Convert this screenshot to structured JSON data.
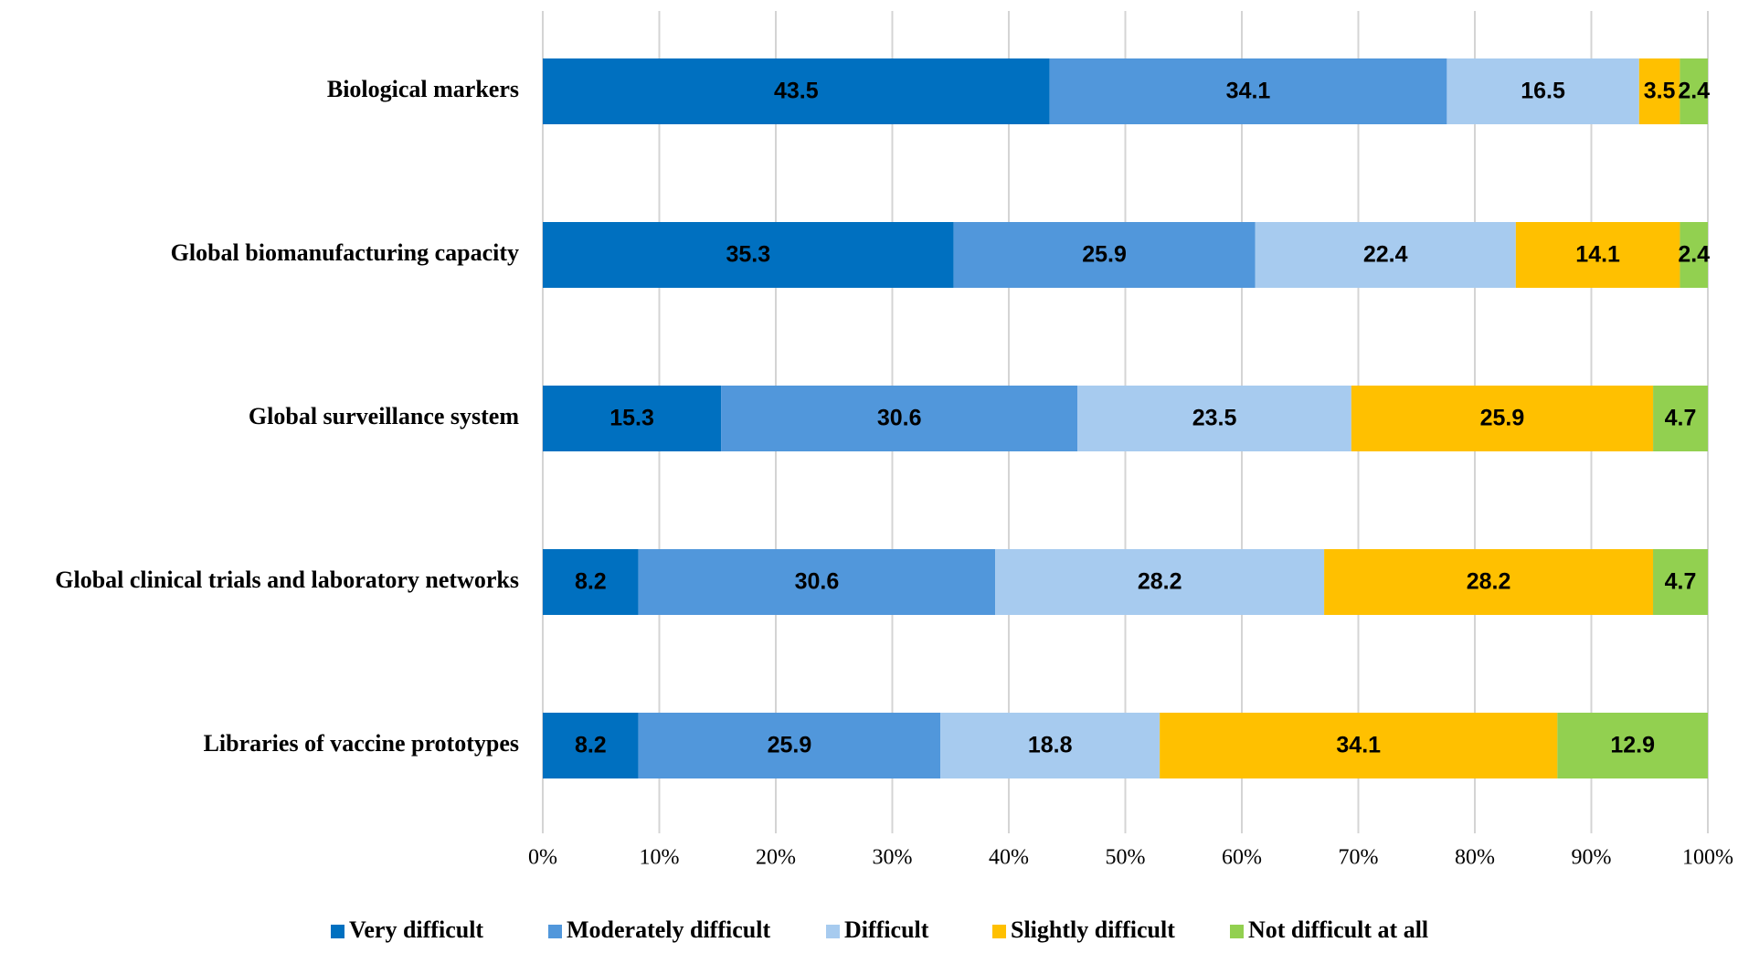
{
  "chart_data": {
    "type": "bar",
    "orientation": "horizontal",
    "stacked": "percent",
    "title": "",
    "xlabel": "",
    "ylabel": "",
    "xlim": [
      0,
      100
    ],
    "grid": true,
    "legend_position": "bottom",
    "categories": [
      "Biological markers",
      "Global biomanufacturing capacity",
      "Global surveillance system",
      "Global clinical trials and laboratory networks",
      "Libraries of vaccine prototypes"
    ],
    "x_ticks": [
      "0%",
      "10%",
      "20%",
      "30%",
      "40%",
      "50%",
      "60%",
      "70%",
      "80%",
      "90%",
      "100%"
    ],
    "series": [
      {
        "name": "Very difficult",
        "color": "#0070C0",
        "values": [
          43.5,
          35.3,
          15.3,
          8.2,
          8.2
        ],
        "labels": [
          "43.5",
          "35.3",
          "15.3",
          "8.2",
          "8.2"
        ]
      },
      {
        "name": "Moderately difficult",
        "color": "#5197DB",
        "values": [
          34.1,
          25.9,
          30.6,
          30.6,
          25.9
        ],
        "labels": [
          "34.1",
          "25.9",
          "30.6",
          "30.6",
          "25.9"
        ]
      },
      {
        "name": "Difficult",
        "color": "#A7CBEF",
        "values": [
          16.5,
          22.4,
          23.5,
          28.2,
          18.8
        ],
        "labels": [
          "16.5",
          "22.4",
          "23.5",
          "28.2",
          "18.8"
        ]
      },
      {
        "name": "Slightly difficult",
        "color": "#FFC000",
        "values": [
          3.5,
          14.1,
          25.9,
          28.2,
          34.1
        ],
        "labels": [
          "3.5",
          "14.1",
          "25.9",
          "28.2",
          "34.1"
        ]
      },
      {
        "name": "Not difficult at all",
        "color": "#92D050",
        "values": [
          2.4,
          2.4,
          4.7,
          4.7,
          12.9
        ],
        "labels": [
          "2.4",
          "2.4",
          "4.7",
          "4.7",
          "12.9"
        ]
      }
    ]
  }
}
